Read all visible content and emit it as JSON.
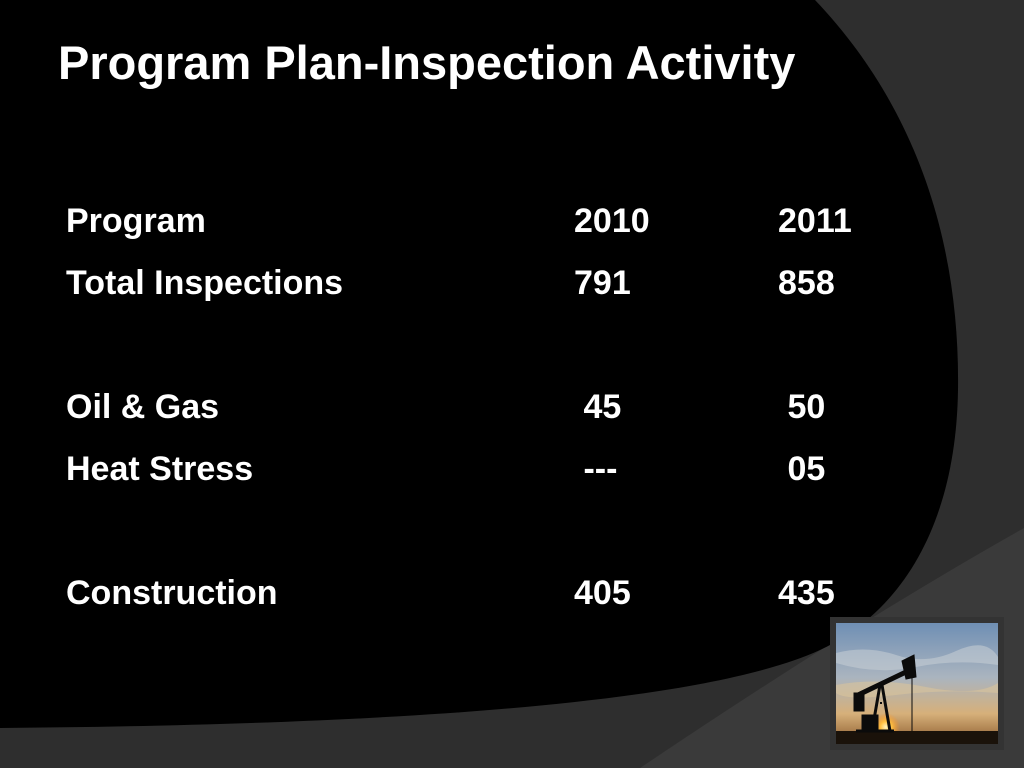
{
  "slide": {
    "title": "Program Plan-Inspection Activity",
    "header": {
      "label": "Program",
      "col_2010": "2010",
      "col_2011": "2011"
    },
    "rows": [
      {
        "label": "Total Inspections",
        "v2010": "791",
        "v2011": "858"
      },
      {
        "label": "Oil & Gas",
        "v2010": " 45",
        "v2011": " 50"
      },
      {
        "label": "Heat Stress",
        "v2010": " ---",
        "v2011": " 05"
      },
      {
        "label": "Construction",
        "v2010": "405",
        "v2011": "435"
      }
    ],
    "photo": {
      "icon": "oil-pumpjack-sunset-photo"
    },
    "colors": {
      "background_gray": "#2e2e2e",
      "slide_black": "#000000",
      "text": "#ffffff",
      "frame": "#333333"
    }
  }
}
